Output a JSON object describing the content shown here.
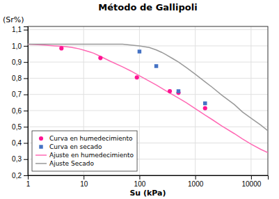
{
  "chart_data": {
    "type": "line",
    "title": "Método de Gallipoli",
    "xlabel": "Su (kPa)",
    "ylabel": "(Sr%)",
    "log": "x",
    "grid": true,
    "legend": "lower left",
    "xlim": [
      1,
      20000
    ],
    "ylim": [
      0.2,
      1.12
    ],
    "xticks": [
      1,
      10,
      100,
      1000,
      10000
    ],
    "yticks": [
      {
        "value": 0.2,
        "label": "0,2"
      },
      {
        "value": 0.3,
        "label": "0,3"
      },
      {
        "value": 0.4,
        "label": "0,4"
      },
      {
        "value": 0.5,
        "label": "0,5"
      },
      {
        "value": 0.6,
        "label": "0,6"
      },
      {
        "value": 0.7,
        "label": "0,7"
      },
      {
        "value": 0.8,
        "label": "0,8"
      },
      {
        "value": 0.9,
        "label": "0,9"
      },
      {
        "value": 1.0,
        "label": "1,0"
      },
      {
        "value": 1.1,
        "label": "1,1"
      }
    ],
    "series": [
      {
        "name": "Curva en humedecimiento",
        "type": "scatter",
        "marker": "circle",
        "color": "#FF1493",
        "x": [
          4,
          20,
          90,
          350,
          500,
          1500
        ],
        "values": [
          0.985,
          0.925,
          0.805,
          0.72,
          0.71,
          0.615
        ]
      },
      {
        "name": "Curva en secado",
        "type": "scatter",
        "marker": "square",
        "color": "#4472C4",
        "x": [
          100,
          200,
          500,
          1500
        ],
        "values": [
          0.965,
          0.875,
          0.72,
          0.645
        ]
      },
      {
        "name": "Ajuste en humedecimiento",
        "type": "line",
        "color": "#FF69B4",
        "x": [
          1,
          2,
          3,
          4,
          5,
          6,
          7,
          8,
          10,
          13,
          15,
          20,
          30,
          50,
          70,
          100,
          150,
          200,
          300,
          500,
          700,
          1000,
          1500,
          2000,
          3000,
          5000,
          7000,
          10000,
          15000,
          20000
        ],
        "values": [
          1.01,
          1.005,
          1.0,
          0.997,
          0.994,
          0.991,
          0.987,
          0.983,
          0.974,
          0.962,
          0.955,
          0.935,
          0.905,
          0.87,
          0.845,
          0.815,
          0.782,
          0.758,
          0.722,
          0.678,
          0.648,
          0.612,
          0.572,
          0.545,
          0.505,
          0.458,
          0.425,
          0.393,
          0.36,
          0.34
        ]
      },
      {
        "name": "Ajuste Secado",
        "type": "line",
        "color": "#999999",
        "x": [
          1,
          2,
          3,
          5,
          7,
          10,
          15,
          20,
          30,
          50,
          70,
          100,
          150,
          200,
          250,
          300,
          400,
          500,
          700,
          1000,
          1500,
          2000,
          3000,
          5000,
          7000,
          10000,
          15000,
          20000
        ],
        "values": [
          1.01,
          1.01,
          1.01,
          1.01,
          1.01,
          1.01,
          1.01,
          1.01,
          1.01,
          1.01,
          1.005,
          1.0,
          0.99,
          0.975,
          0.96,
          0.945,
          0.92,
          0.9,
          0.865,
          0.825,
          0.778,
          0.745,
          0.695,
          0.638,
          0.592,
          0.553,
          0.51,
          0.475
        ]
      }
    ]
  }
}
